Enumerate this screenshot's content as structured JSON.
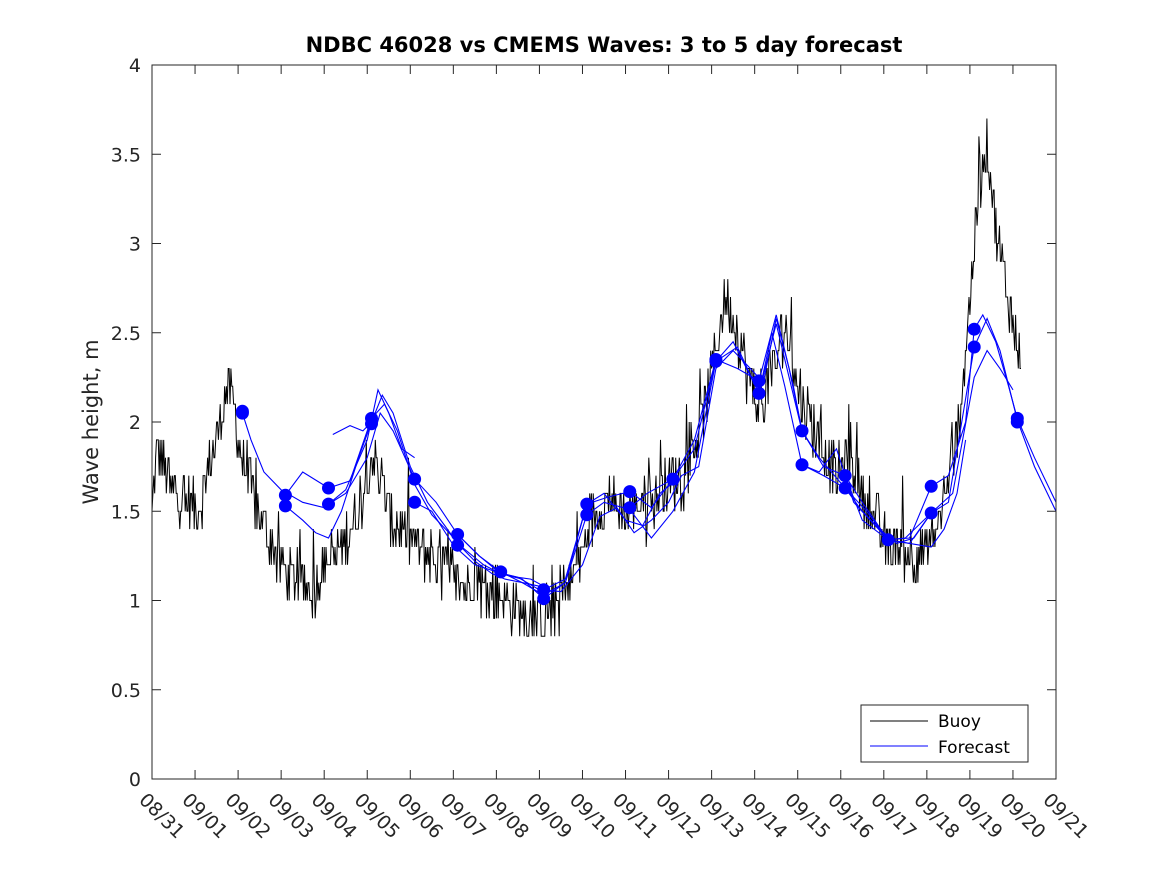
{
  "chart_data": {
    "type": "line",
    "title": "NDBC 46028 vs CMEMS Waves: 3 to 5 day forecast",
    "xlabel": "",
    "ylabel": "Wave height, m",
    "xlim": [
      0,
      21
    ],
    "ylim": [
      0,
      4
    ],
    "x_tick_labels": [
      "08/31",
      "09/01",
      "09/02",
      "09/03",
      "09/04",
      "09/05",
      "09/06",
      "09/07",
      "09/08",
      "09/09",
      "09/10",
      "09/11",
      "09/12",
      "09/13",
      "09/14",
      "09/15",
      "09/16",
      "09/17",
      "09/18",
      "09/19",
      "09/20",
      "09/21"
    ],
    "y_ticks": [
      0,
      0.5,
      1,
      1.5,
      2,
      2.5,
      3,
      3.5,
      4
    ],
    "y_tick_labels": [
      "0",
      "0.5",
      "1",
      "1.5",
      "2",
      "2.5",
      "3",
      "3.5",
      "4"
    ],
    "legend": {
      "location": "bottom-right",
      "entries": [
        {
          "label": "Buoy",
          "color": "#000000"
        },
        {
          "label": "Forecast",
          "color": "#0000ff"
        }
      ]
    },
    "colors": {
      "buoy": "#000000",
      "forecast": "#0000ff",
      "markers": "#0000ff"
    },
    "series": [
      {
        "name": "Buoy",
        "note": "anchor points (day, m); rendered with fine-scale noise",
        "x": [
          0,
          0.1,
          0.25,
          0.5,
          0.8,
          1.0,
          1.2,
          1.4,
          1.6,
          1.75,
          1.9,
          2.0,
          2.2,
          2.5,
          2.8,
          3.1,
          3.4,
          3.7,
          4.0,
          4.3,
          4.6,
          4.9,
          5.1,
          5.2,
          5.4,
          5.6,
          5.9,
          6.2,
          6.5,
          6.8,
          7.1,
          7.5,
          7.9,
          8.3,
          8.7,
          9.0,
          9.3,
          9.6,
          9.9,
          10.2,
          10.6,
          11.0,
          11.4,
          11.8,
          12.2,
          12.5,
          12.8,
          13.1,
          13.3,
          13.5,
          13.8,
          14.1,
          14.4,
          14.7,
          15.0,
          15.3,
          15.6,
          15.9,
          16.2,
          16.5,
          16.8,
          17.1,
          17.4,
          17.7,
          18.0,
          18.3,
          18.6,
          18.8,
          19.0,
          19.2,
          19.4,
          19.6,
          19.8,
          19.95,
          20.1,
          20.2
        ],
        "y": [
          1.45,
          1.85,
          1.8,
          1.6,
          1.55,
          1.5,
          1.6,
          1.85,
          2.0,
          2.2,
          2.1,
          1.9,
          1.7,
          1.45,
          1.3,
          1.15,
          1.1,
          1.05,
          1.2,
          1.25,
          1.4,
          1.6,
          1.8,
          1.75,
          1.6,
          1.45,
          1.35,
          1.3,
          1.25,
          1.2,
          1.1,
          1.1,
          1.05,
          1.0,
          0.9,
          0.88,
          0.95,
          1.05,
          1.2,
          1.45,
          1.55,
          1.5,
          1.55,
          1.6,
          1.7,
          1.8,
          2.0,
          2.4,
          2.7,
          2.6,
          2.3,
          2.1,
          2.25,
          2.55,
          2.2,
          2.0,
          1.85,
          1.7,
          1.85,
          1.6,
          1.45,
          1.3,
          1.3,
          1.25,
          1.3,
          1.45,
          1.8,
          2.1,
          2.7,
          3.3,
          3.6,
          3.1,
          2.8,
          2.6,
          2.45,
          2.35
        ]
      },
      {
        "name": "Forecast",
        "runs": [
          {
            "x": [
              2.1,
              2.3,
              2.6,
              3.0,
              3.5,
              4.0,
              4.5,
              5.0,
              5.25,
              5.5,
              5.8,
              6.1
            ],
            "y": [
              2.05,
              1.9,
              1.72,
              1.62,
              1.55,
              1.52,
              1.62,
              1.9,
              2.18,
              2.05,
              1.85,
              1.8
            ]
          },
          {
            "x": [
              3.1,
              3.5,
              3.8,
              4.1,
              4.4,
              4.8,
              5.1,
              5.35,
              5.6,
              6.0,
              6.4,
              6.8,
              7.1,
              7.5,
              7.9,
              8.2,
              8.6,
              9.0
            ],
            "y": [
              1.53,
              1.45,
              1.38,
              1.35,
              1.5,
              1.8,
              2.0,
              2.15,
              2.05,
              1.75,
              1.55,
              1.42,
              1.32,
              1.22,
              1.15,
              1.12,
              1.1,
              1.08
            ]
          },
          {
            "x": [
              3.1,
              3.5,
              4.1,
              4.6,
              5.1,
              5.4,
              5.7,
              6.1,
              6.5,
              6.9,
              7.2,
              7.7,
              8.1,
              8.5,
              8.8,
              9.1
            ],
            "y": [
              1.59,
              1.72,
              1.63,
              1.67,
              2.02,
              2.1,
              1.95,
              1.65,
              1.48,
              1.38,
              1.3,
              1.2,
              1.15,
              1.13,
              1.12,
              1.08
            ]
          },
          {
            "x": [
              4.1,
              4.5,
              5.0,
              5.3,
              5.6,
              6.1,
              6.6,
              7.1,
              7.6,
              8.1,
              8.6,
              9.1,
              9.6,
              10.1,
              10.5,
              11.0,
              11.4,
              11.8,
              12.2
            ],
            "y": [
              1.54,
              1.6,
              1.8,
              2.05,
              1.95,
              1.68,
              1.55,
              1.37,
              1.25,
              1.16,
              1.1,
              1.03,
              1.1,
              1.54,
              1.6,
              1.45,
              1.42,
              1.6,
              1.68
            ]
          },
          {
            "x": [
              4.2,
              4.6,
              4.9,
              5.1
            ],
            "y": [
              1.93,
              1.98,
              1.95,
              2.0
            ]
          },
          {
            "x": [
              6.1,
              6.5,
              7.0,
              7.5,
              8.0,
              8.5,
              9.0,
              9.5,
              10.0,
              10.4,
              10.8,
              11.2,
              11.6,
              12.0,
              12.3,
              12.7,
              13.1,
              13.5,
              13.9,
              14.2,
              14.5,
              14.8,
              15.1
            ],
            "y": [
              1.55,
              1.5,
              1.31,
              1.2,
              1.16,
              1.13,
              1.06,
              1.05,
              1.2,
              1.47,
              1.52,
              1.38,
              1.45,
              1.55,
              1.7,
              1.75,
              2.3,
              2.4,
              2.3,
              2.22,
              2.58,
              2.3,
              1.95
            ]
          },
          {
            "x": [
              7.1,
              7.6,
              8.1,
              8.6,
              9.1,
              9.6,
              10.1,
              10.5,
              11.1,
              11.6,
              12.1,
              12.6,
              13.1,
              13.6,
              14.1,
              14.4,
              14.7,
              15.1,
              15.5,
              15.9,
              16.3,
              16.8,
              17.1
            ],
            "y": [
              1.37,
              1.25,
              1.15,
              1.12,
              1.01,
              1.1,
              1.48,
              1.55,
              1.51,
              1.35,
              1.5,
              1.72,
              2.34,
              2.42,
              2.16,
              2.5,
              2.2,
              1.76,
              1.72,
              1.85,
              1.55,
              1.42,
              1.34
            ]
          },
          {
            "x": [
              9.1,
              9.6,
              10.1,
              10.6,
              11.1,
              11.6,
              12.1,
              12.6,
              13.1,
              13.6,
              14.1,
              14.5,
              14.9,
              15.1,
              15.5,
              16.1,
              16.5,
              16.9,
              17.3,
              17.7,
              18.1
            ],
            "y": [
              1.06,
              1.12,
              1.54,
              1.58,
              1.61,
              1.52,
              1.68,
              1.9,
              2.35,
              2.3,
              2.23,
              2.6,
              2.2,
              1.95,
              1.8,
              1.63,
              1.5,
              1.4,
              1.32,
              1.35,
              1.49
            ]
          },
          {
            "x": [
              11.1,
              11.5,
              12.1,
              12.6,
              13.1,
              13.5,
              14.1,
              14.5,
              15.1,
              15.6,
              16.1,
              16.5,
              17.1,
              17.5,
              18.1,
              18.5,
              19.1,
              19.4,
              19.7,
              20.1,
              20.5,
              21.0
            ],
            "y": [
              1.52,
              1.6,
              1.68,
              1.85,
              2.34,
              2.45,
              2.16,
              2.55,
              1.95,
              1.75,
              1.7,
              1.45,
              1.34,
              1.35,
              1.49,
              1.55,
              2.42,
              2.58,
              2.4,
              2.01,
              1.75,
              1.5
            ]
          },
          {
            "x": [
              15.1,
              15.6,
              16.1,
              16.6,
              17.1,
              17.6,
              18.1,
              18.5,
              18.9,
              19.1,
              19.3,
              19.6,
              19.9,
              20.1,
              20.5,
              21.0
            ],
            "y": [
              1.76,
              1.7,
              1.63,
              1.5,
              1.34,
              1.35,
              1.64,
              1.7,
              2.0,
              2.52,
              2.6,
              2.45,
              2.2,
              2.02,
              1.8,
              1.55
            ]
          },
          {
            "x": [
              17.1,
              17.6,
              18.1,
              18.4,
              18.7,
              18.9
            ],
            "y": [
              1.34,
              1.32,
              1.3,
              1.4,
              1.6,
              1.9
            ]
          },
          {
            "x": [
              16.1,
              16.5,
              17.1,
              17.6,
              18.1,
              18.6,
              19.1,
              19.4,
              19.7,
              20.0
            ],
            "y": [
              1.7,
              1.55,
              1.34,
              1.32,
              1.49,
              1.6,
              2.25,
              2.4,
              2.3,
              2.18
            ]
          }
        ]
      },
      {
        "name": "Forecast markers",
        "x": [
          2.1,
          2.1,
          3.1,
          3.1,
          4.1,
          4.1,
          5.1,
          5.1,
          6.1,
          6.1,
          7.1,
          7.1,
          8.1,
          9.1,
          9.1,
          10.1,
          10.1,
          11.1,
          11.1,
          12.1,
          13.1,
          13.1,
          14.1,
          14.1,
          15.1,
          15.1,
          16.1,
          16.1,
          17.1,
          18.1,
          18.1,
          19.1,
          19.1,
          20.1,
          20.1
        ],
        "y": [
          2.06,
          2.05,
          1.59,
          1.53,
          1.63,
          1.54,
          2.02,
          1.99,
          1.68,
          1.55,
          1.37,
          1.31,
          1.16,
          1.06,
          1.01,
          1.54,
          1.48,
          1.61,
          1.52,
          1.68,
          2.35,
          2.34,
          2.23,
          2.16,
          1.95,
          1.76,
          1.7,
          1.63,
          1.34,
          1.64,
          1.49,
          2.52,
          2.42,
          2.02,
          2.0
        ]
      }
    ]
  }
}
